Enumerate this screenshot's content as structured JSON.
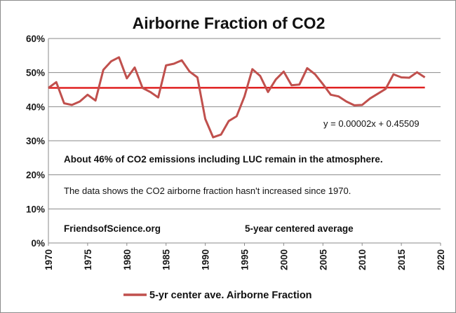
{
  "chart_data": {
    "type": "line",
    "title": "Airborne Fraction of CO2",
    "xlabel": "",
    "ylabel": "",
    "xlim": [
      1970,
      2020
    ],
    "ylim": [
      0,
      60
    ],
    "x_ticks": [
      "1970",
      "1975",
      "1980",
      "1985",
      "1990",
      "1995",
      "2000",
      "2005",
      "2010",
      "2015",
      "2020"
    ],
    "y_ticks": [
      "0%",
      "10%",
      "20%",
      "30%",
      "40%",
      "50%",
      "60%"
    ],
    "grid": "horizontal",
    "legend_position": "bottom",
    "colors": {
      "series": "#c0504d",
      "trend": "#e02020",
      "grid": "#8a8a8a"
    },
    "series": [
      {
        "name": "5-yr center ave. Airborne Fraction",
        "x": [
          1970,
          1971,
          1972,
          1973,
          1974,
          1975,
          1976,
          1977,
          1978,
          1979,
          1980,
          1981,
          1982,
          1983,
          1984,
          1985,
          1986,
          1987,
          1988,
          1989,
          1990,
          1991,
          1992,
          1993,
          1994,
          1995,
          1996,
          1997,
          1998,
          1999,
          2000,
          2001,
          2002,
          2003,
          2004,
          2005,
          2006,
          2007,
          2008,
          2009,
          2010,
          2011,
          2012,
          2013,
          2014,
          2015,
          2016,
          2017,
          2018
        ],
        "values": [
          45.5,
          47.2,
          41.0,
          40.5,
          41.5,
          43.5,
          41.8,
          50.8,
          53.3,
          54.5,
          48.3,
          51.5,
          45.5,
          44.3,
          42.7,
          52.1,
          52.6,
          53.6,
          50.3,
          48.6,
          36.4,
          31.0,
          31.8,
          35.8,
          37.2,
          43.0,
          51.0,
          49.0,
          44.3,
          48.0,
          50.3,
          46.3,
          46.5,
          51.3,
          49.5,
          46.6,
          43.5,
          43.0,
          41.5,
          40.4,
          40.5,
          42.4,
          43.8,
          45.2,
          49.5,
          48.6,
          48.5,
          50.1,
          48.6
        ]
      }
    ],
    "trendline": {
      "label": "y = 0.00002x + 0.45509",
      "slope": 2e-05,
      "intercept": 0.45509,
      "x_range": [
        1970,
        2018
      ]
    },
    "annotations": {
      "main_claim": "About 46% of CO2 emissions including LUC remain in the atmosphere.",
      "data_note": "The data shows the CO2 airborne fraction hasn't increased since 1970.",
      "source": "FriendsofScience.org",
      "avg_note": "5-year centered average"
    }
  }
}
